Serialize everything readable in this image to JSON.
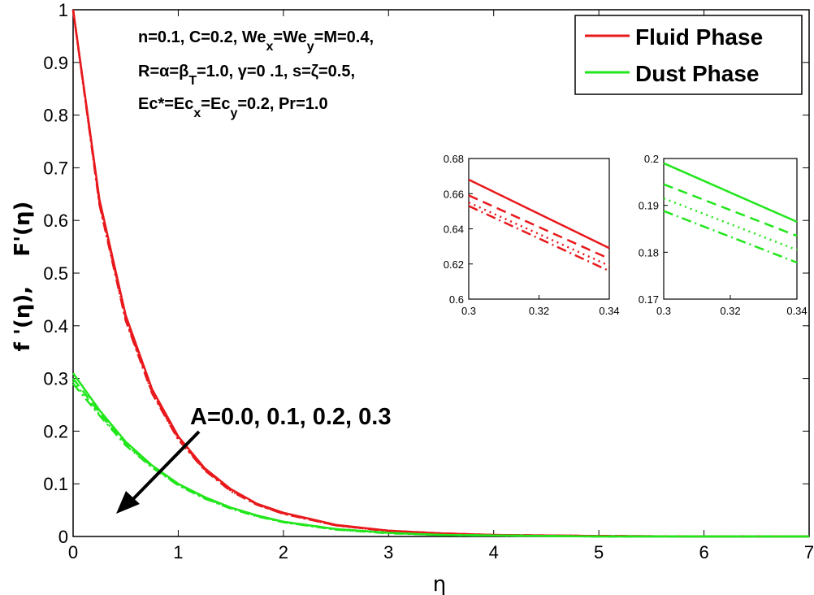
{
  "chart_data": {
    "type": "line",
    "xlabel": "η",
    "ylabel": "f '(η),    F'(η)",
    "xlim": [
      0,
      7
    ],
    "ylim": [
      0,
      1
    ],
    "xticks": [
      0,
      1,
      2,
      3,
      4,
      5,
      6,
      7
    ],
    "yticks": [
      0,
      0.1,
      0.2,
      0.3,
      0.4,
      0.5,
      0.6,
      0.7,
      0.8,
      0.9,
      1
    ],
    "grid": false,
    "legend": {
      "position": "top-right",
      "entries": [
        {
          "label": "Fluid Phase",
          "color": "#e8191c"
        },
        {
          "label": "Dust Phase",
          "color": "#22e61c"
        }
      ]
    },
    "parameter_lines": [
      "n=0.1, C=0.2, Wex=Wey=M=0.4,",
      "R=α=βT=1.0, γ=0 .1, s=ζ=0.5,",
      "Ec*=Ecx=Ecy=0.2, Pr=1.0"
    ],
    "annotation": "A=0.0, 0.1, 0.2, 0.3",
    "line_styles": [
      "solid",
      "dashed",
      "dotted",
      "dashdot"
    ],
    "x": [
      0,
      0.25,
      0.5,
      0.75,
      1,
      1.25,
      1.5,
      1.75,
      2,
      2.5,
      3,
      3.5,
      4,
      5,
      6,
      7
    ],
    "series": [
      {
        "phase": "Fluid Phase",
        "A": 0.0,
        "style": "solid",
        "color": "#e8191c",
        "values": [
          1.0,
          0.64,
          0.42,
          0.28,
          0.19,
          0.13,
          0.09,
          0.062,
          0.045,
          0.022,
          0.011,
          0.006,
          0.003,
          0.001,
          0.0,
          0.0
        ]
      },
      {
        "phase": "Fluid Phase",
        "A": 0.1,
        "style": "dashed",
        "color": "#e8191c",
        "values": [
          1.0,
          0.635,
          0.415,
          0.275,
          0.187,
          0.128,
          0.088,
          0.061,
          0.044,
          0.021,
          0.011,
          0.006,
          0.003,
          0.001,
          0.0,
          0.0
        ]
      },
      {
        "phase": "Fluid Phase",
        "A": 0.2,
        "style": "dotted",
        "color": "#e8191c",
        "values": [
          1.0,
          0.632,
          0.412,
          0.273,
          0.185,
          0.127,
          0.087,
          0.06,
          0.043,
          0.021,
          0.01,
          0.005,
          0.003,
          0.001,
          0.0,
          0.0
        ]
      },
      {
        "phase": "Fluid Phase",
        "A": 0.3,
        "style": "dashdot",
        "color": "#e8191c",
        "values": [
          1.0,
          0.63,
          0.41,
          0.272,
          0.184,
          0.126,
          0.086,
          0.06,
          0.043,
          0.021,
          0.01,
          0.005,
          0.003,
          0.001,
          0.0,
          0.0
        ]
      },
      {
        "phase": "Dust Phase",
        "A": 0.0,
        "style": "solid",
        "color": "#22e61c",
        "values": [
          0.31,
          0.24,
          0.18,
          0.135,
          0.1,
          0.075,
          0.055,
          0.04,
          0.028,
          0.014,
          0.007,
          0.003,
          0.002,
          0.0,
          0.0,
          0.0
        ]
      },
      {
        "phase": "Dust Phase",
        "A": 0.1,
        "style": "dashed",
        "color": "#22e61c",
        "values": [
          0.3,
          0.235,
          0.177,
          0.133,
          0.099,
          0.074,
          0.054,
          0.039,
          0.028,
          0.014,
          0.007,
          0.003,
          0.002,
          0.0,
          0.0,
          0.0
        ]
      },
      {
        "phase": "Dust Phase",
        "A": 0.2,
        "style": "dotted",
        "color": "#22e61c",
        "values": [
          0.295,
          0.232,
          0.175,
          0.132,
          0.098,
          0.073,
          0.053,
          0.039,
          0.027,
          0.013,
          0.007,
          0.003,
          0.002,
          0.0,
          0.0,
          0.0
        ]
      },
      {
        "phase": "Dust Phase",
        "A": 0.3,
        "style": "dashdot",
        "color": "#22e61c",
        "values": [
          0.29,
          0.23,
          0.173,
          0.131,
          0.097,
          0.072,
          0.053,
          0.038,
          0.027,
          0.013,
          0.006,
          0.003,
          0.002,
          0.0,
          0.0,
          0.0
        ]
      }
    ],
    "insets": [
      {
        "phase": "Fluid Phase",
        "xlim": [
          0.3,
          0.34
        ],
        "ylim": [
          0.6,
          0.68
        ],
        "xticks": [
          "0.3",
          "0.32",
          "0.34"
        ],
        "yticks": [
          "0.6",
          "0.62",
          "0.64",
          "0.66",
          "0.68"
        ],
        "x": [
          0.3,
          0.34
        ],
        "series": [
          {
            "A": 0.0,
            "style": "solid",
            "values": [
              0.668,
              0.629
            ]
          },
          {
            "A": 0.1,
            "style": "dashed",
            "values": [
              0.659,
              0.623
            ]
          },
          {
            "A": 0.2,
            "style": "dotted",
            "values": [
              0.655,
              0.619
            ]
          },
          {
            "A": 0.3,
            "style": "dashdot",
            "values": [
              0.653,
              0.616
            ]
          }
        ]
      },
      {
        "phase": "Dust Phase",
        "xlim": [
          0.3,
          0.34
        ],
        "ylim": [
          0.17,
          0.2
        ],
        "xticks": [
          "0.3",
          "0.32",
          "0.34"
        ],
        "yticks": [
          "0.17",
          "0.18",
          "0.19",
          "0.2"
        ],
        "x": [
          0.3,
          0.34
        ],
        "series": [
          {
            "A": 0.0,
            "style": "solid",
            "values": [
              0.199,
              0.1865
            ]
          },
          {
            "A": 0.1,
            "style": "dashed",
            "values": [
              0.1945,
              0.1835
            ]
          },
          {
            "A": 0.2,
            "style": "dotted",
            "values": [
              0.1915,
              0.1805
            ]
          },
          {
            "A": 0.3,
            "style": "dashdot",
            "values": [
              0.1888,
              0.1778
            ]
          }
        ]
      }
    ]
  }
}
